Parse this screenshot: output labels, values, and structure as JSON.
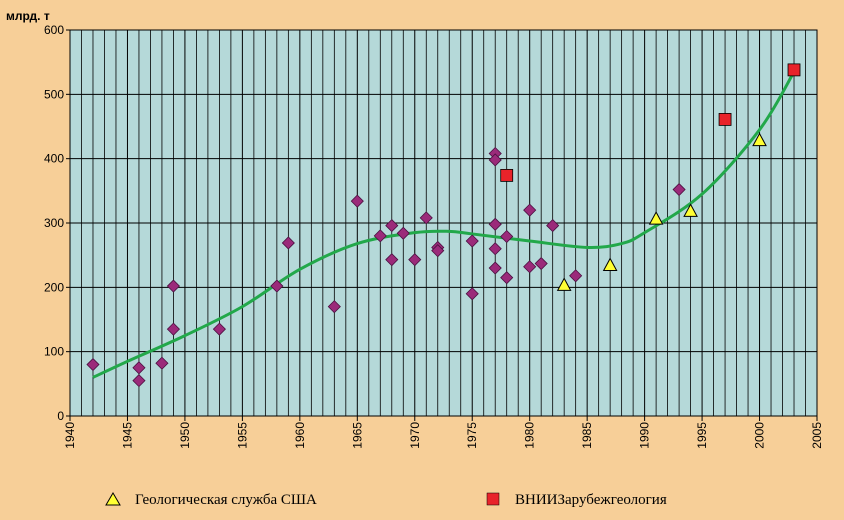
{
  "chart_data": {
    "type": "scatter",
    "unit_label": "млрд. т",
    "xlim": [
      1940,
      2005
    ],
    "ylim": [
      0,
      600
    ],
    "x_ticks": [
      "1940",
      "1945",
      "1950",
      "1955",
      "1960",
      "1965",
      "1970",
      "1975",
      "1980",
      "1985",
      "1990",
      "1995",
      "2000",
      "2005"
    ],
    "y_ticks": [
      "0",
      "100",
      "200",
      "300",
      "400",
      "500",
      "600"
    ],
    "grid": true,
    "legend_position": "bottom",
    "colors": {
      "plot_background": "#b5d9d9",
      "page_background": "#f7cf98",
      "grid": "#000000",
      "diamond": "#9b2a7a",
      "triangle": "#ffff33",
      "square": "#e8232a",
      "trend": "#22a84a"
    },
    "series": [
      {
        "marker": "diamond",
        "points": [
          [
            1942,
            80
          ],
          [
            1946,
            75
          ],
          [
            1946,
            55
          ],
          [
            1948,
            82
          ],
          [
            1949,
            202
          ],
          [
            1949,
            135
          ],
          [
            1953,
            135
          ],
          [
            1958,
            202
          ],
          [
            1959,
            269
          ],
          [
            1963,
            170
          ],
          [
            1965,
            334
          ],
          [
            1967,
            280
          ],
          [
            1968,
            296
          ],
          [
            1968,
            243
          ],
          [
            1969,
            284
          ],
          [
            1970,
            243
          ],
          [
            1971,
            308
          ],
          [
            1972,
            262
          ],
          [
            1972,
            257
          ],
          [
            1975,
            272
          ],
          [
            1975,
            190
          ],
          [
            1977,
            408
          ],
          [
            1977,
            398
          ],
          [
            1977,
            298
          ],
          [
            1977,
            260
          ],
          [
            1977,
            230
          ],
          [
            1978,
            279
          ],
          [
            1978,
            215
          ],
          [
            1980,
            320
          ],
          [
            1980,
            232
          ],
          [
            1981,
            237
          ],
          [
            1982,
            296
          ],
          [
            1984,
            218
          ],
          [
            1993,
            352
          ]
        ]
      },
      {
        "name": "Геологическая служба США",
        "marker": "triangle",
        "points": [
          [
            1983,
            203
          ],
          [
            1987,
            234
          ],
          [
            1991,
            306
          ],
          [
            1994,
            318
          ],
          [
            2000,
            428
          ]
        ]
      },
      {
        "name": "ВНИИЗарубежгеология",
        "marker": "square",
        "points": [
          [
            1978,
            374
          ],
          [
            1997,
            461
          ],
          [
            2003,
            538
          ]
        ]
      }
    ],
    "trend_line": [
      [
        1942,
        60
      ],
      [
        1945,
        85
      ],
      [
        1950,
        125
      ],
      [
        1955,
        170
      ],
      [
        1960,
        228
      ],
      [
        1965,
        268
      ],
      [
        1970,
        285
      ],
      [
        1973,
        287
      ],
      [
        1975,
        283
      ],
      [
        1980,
        272
      ],
      [
        1985,
        262
      ],
      [
        1988,
        268
      ],
      [
        1990,
        285
      ],
      [
        1995,
        345
      ],
      [
        2000,
        445
      ],
      [
        2003,
        535
      ]
    ]
  }
}
